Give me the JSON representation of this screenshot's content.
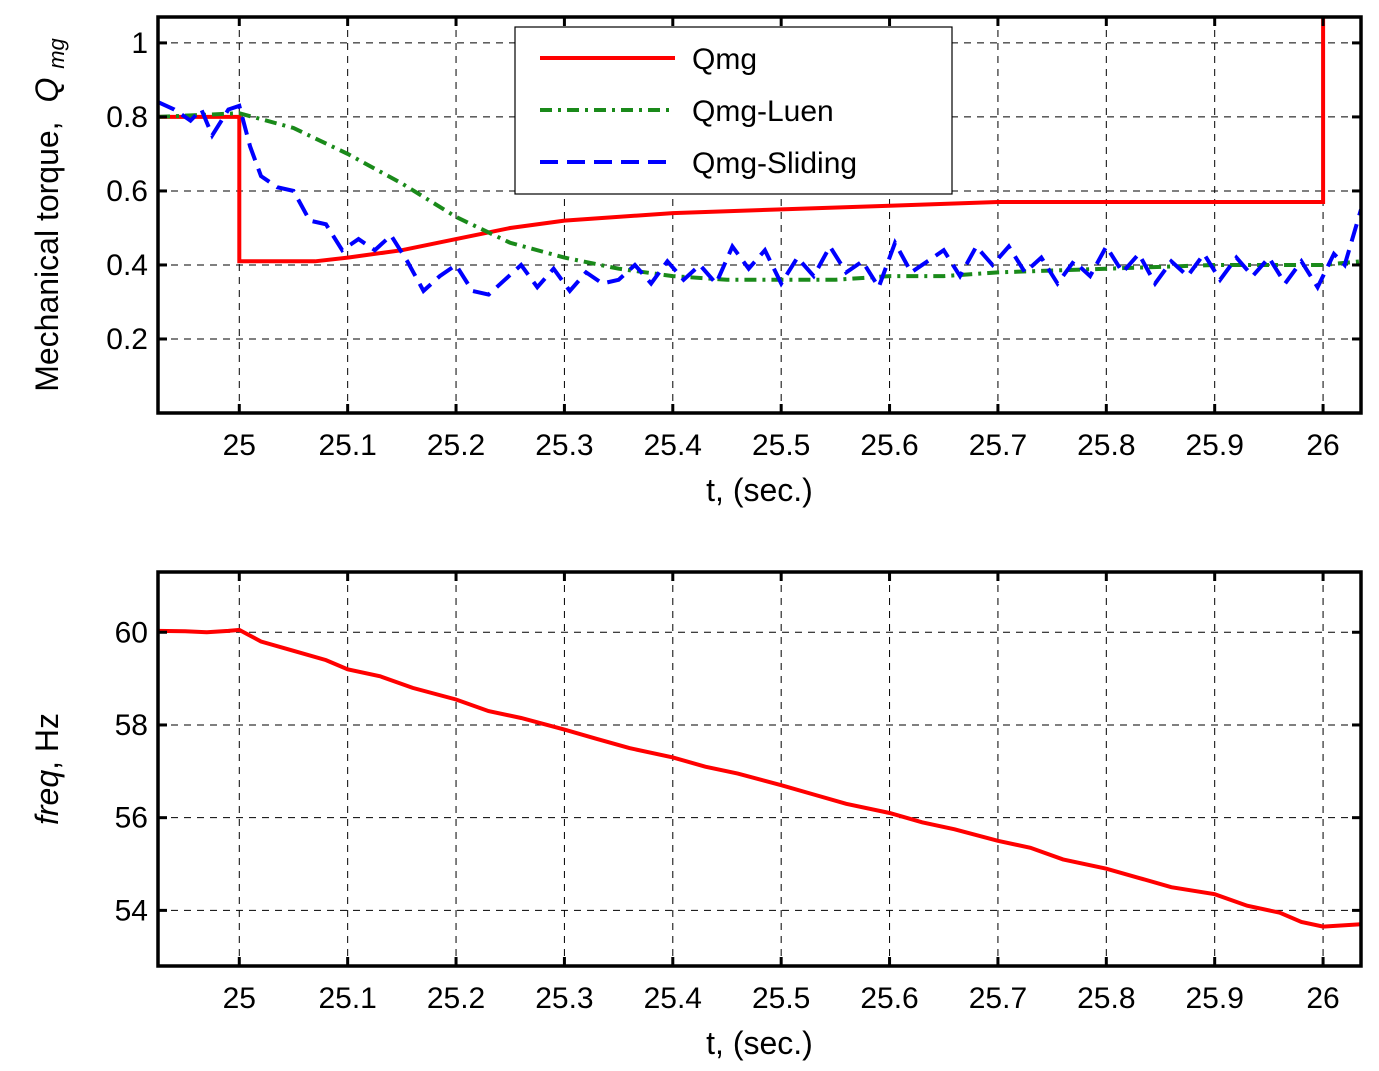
{
  "chart_data": [
    {
      "type": "line",
      "title": "",
      "xlabel": "t, (sec.)",
      "ylabel_text": "Mechanical torque,",
      "ylabel_symbol": "Q",
      "ylabel_subscript": "mg",
      "xlim": [
        24.925,
        26.035
      ],
      "ylim": [
        0,
        1.07
      ],
      "xticks": [
        25,
        25.1,
        25.2,
        25.3,
        25.4,
        25.5,
        25.6,
        25.7,
        25.8,
        25.9,
        26
      ],
      "xtick_labels": [
        "25",
        "25.1",
        "25.2",
        "25.3",
        "25.4",
        "25.5",
        "25.6",
        "25.7",
        "25.8",
        "25.9",
        "26"
      ],
      "yticks": [
        0.2,
        0.4,
        0.6,
        0.8,
        1
      ],
      "ytick_labels": [
        "0.2",
        "0.4",
        "0.6",
        "0.8",
        "1"
      ],
      "grid": true,
      "legend_position": "top-center",
      "series": [
        {
          "name": "Qmg",
          "color": "#ff0000",
          "style": "solid",
          "x": [
            24.925,
            25.0,
            25.0,
            25.07,
            25.1,
            25.15,
            25.2,
            25.25,
            25.3,
            25.4,
            25.5,
            25.6,
            25.7,
            25.8,
            25.9,
            26.0,
            26.0
          ],
          "y": [
            0.8,
            0.8,
            0.41,
            0.41,
            0.42,
            0.44,
            0.47,
            0.5,
            0.52,
            0.54,
            0.55,
            0.56,
            0.57,
            0.57,
            0.57,
            0.57,
            1.07
          ]
        },
        {
          "name": "Qmg-Luen",
          "color": "#1a8a1a",
          "style": "dashdot",
          "x": [
            24.925,
            25.0,
            25.05,
            25.1,
            25.15,
            25.2,
            25.25,
            25.3,
            25.35,
            25.4,
            25.45,
            25.5,
            25.55,
            25.6,
            25.65,
            25.7,
            25.8,
            25.9,
            26.0,
            26.035
          ],
          "y": [
            0.8,
            0.81,
            0.77,
            0.7,
            0.62,
            0.53,
            0.46,
            0.42,
            0.39,
            0.37,
            0.36,
            0.36,
            0.36,
            0.37,
            0.37,
            0.38,
            0.39,
            0.4,
            0.4,
            0.41
          ]
        },
        {
          "name": "Qmg-Sliding",
          "color": "#0000ff",
          "style": "dashed",
          "x": [
            24.925,
            24.94,
            24.955,
            24.965,
            24.975,
            24.99,
            25.0,
            25.01,
            25.02,
            25.035,
            25.05,
            25.065,
            25.08,
            25.095,
            25.11,
            25.125,
            25.14,
            25.155,
            25.17,
            25.185,
            25.2,
            25.215,
            25.23,
            25.245,
            25.26,
            25.275,
            25.29,
            25.305,
            25.32,
            25.335,
            25.35,
            25.365,
            25.38,
            25.395,
            25.41,
            25.425,
            25.44,
            25.455,
            25.47,
            25.485,
            25.5,
            25.515,
            25.53,
            25.545,
            25.56,
            25.575,
            25.59,
            25.605,
            25.62,
            25.635,
            25.65,
            25.665,
            25.68,
            25.695,
            25.71,
            25.725,
            25.74,
            25.755,
            25.77,
            25.785,
            25.8,
            25.815,
            25.83,
            25.845,
            25.86,
            25.875,
            25.89,
            25.905,
            25.92,
            25.935,
            25.95,
            25.965,
            25.98,
            25.995,
            26.01,
            26.02,
            26.035
          ],
          "y": [
            0.84,
            0.82,
            0.79,
            0.82,
            0.75,
            0.82,
            0.83,
            0.72,
            0.64,
            0.61,
            0.6,
            0.52,
            0.51,
            0.44,
            0.47,
            0.44,
            0.48,
            0.41,
            0.33,
            0.37,
            0.4,
            0.33,
            0.32,
            0.36,
            0.4,
            0.34,
            0.39,
            0.33,
            0.38,
            0.35,
            0.36,
            0.4,
            0.35,
            0.41,
            0.36,
            0.4,
            0.35,
            0.45,
            0.39,
            0.44,
            0.35,
            0.42,
            0.37,
            0.45,
            0.38,
            0.41,
            0.34,
            0.46,
            0.38,
            0.41,
            0.44,
            0.37,
            0.45,
            0.4,
            0.45,
            0.38,
            0.42,
            0.35,
            0.41,
            0.37,
            0.45,
            0.38,
            0.43,
            0.35,
            0.41,
            0.37,
            0.43,
            0.36,
            0.42,
            0.37,
            0.42,
            0.35,
            0.41,
            0.34,
            0.43,
            0.4,
            0.55
          ]
        }
      ]
    },
    {
      "type": "line",
      "title": "",
      "xlabel": "t, (sec.)",
      "ylabel_italic": "freq",
      "ylabel_rest": ", Hz",
      "xlim": [
        24.925,
        26.035
      ],
      "ylim": [
        52.8,
        61.3
      ],
      "xticks": [
        25,
        25.1,
        25.2,
        25.3,
        25.4,
        25.5,
        25.6,
        25.7,
        25.8,
        25.9,
        26
      ],
      "xtick_labels": [
        "25",
        "25.1",
        "25.2",
        "25.3",
        "25.4",
        "25.5",
        "25.6",
        "25.7",
        "25.8",
        "25.9",
        "26"
      ],
      "yticks": [
        54,
        56,
        58,
        60
      ],
      "ytick_labels": [
        "54",
        "56",
        "58",
        "60"
      ],
      "grid": true,
      "series": [
        {
          "color": "#ff0000",
          "style": "solid",
          "x": [
            24.925,
            24.95,
            24.97,
            24.99,
            25.0,
            25.02,
            25.05,
            25.08,
            25.1,
            25.13,
            25.16,
            25.2,
            25.23,
            25.26,
            25.3,
            25.33,
            25.36,
            25.4,
            25.43,
            25.46,
            25.5,
            25.53,
            25.56,
            25.6,
            25.63,
            25.66,
            25.7,
            25.73,
            25.76,
            25.8,
            25.83,
            25.86,
            25.9,
            25.93,
            25.96,
            25.98,
            26.0,
            26.035
          ],
          "y": [
            60.03,
            60.02,
            60.0,
            60.03,
            60.05,
            59.8,
            59.6,
            59.4,
            59.2,
            59.05,
            58.8,
            58.55,
            58.3,
            58.15,
            57.9,
            57.7,
            57.5,
            57.3,
            57.1,
            56.95,
            56.7,
            56.5,
            56.3,
            56.1,
            55.9,
            55.75,
            55.5,
            55.35,
            55.1,
            54.9,
            54.7,
            54.5,
            54.35,
            54.1,
            53.95,
            53.75,
            53.65,
            53.7
          ]
        }
      ]
    }
  ]
}
